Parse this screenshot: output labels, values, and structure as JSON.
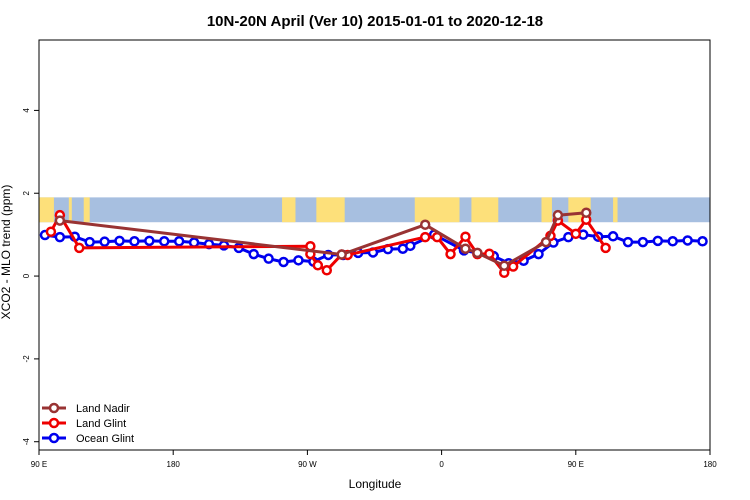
{
  "chart_data": {
    "type": "line",
    "title": "10N-20N April (Ver 10)   2015-01-01 to 2020-12-18",
    "xlabel": "Longitude",
    "ylabel": "XCO2 - MLO trend (ppm)",
    "x_scale": "longitude, wrapping 90E eastward through 180 to 180 (one and a quarter turns)",
    "xlim_longitude_unwrapped": [
      90,
      540
    ],
    "ylim": [
      -4.2,
      5.7
    ],
    "grid": false,
    "legend_position": "bottom-left",
    "x_ticks": [
      {
        "value": 90,
        "label": "90 E"
      },
      {
        "value": 180,
        "label": "180"
      },
      {
        "value": 270,
        "label": "90 W"
      },
      {
        "value": 360,
        "label": "0"
      },
      {
        "value": 450,
        "label": "90 E"
      },
      {
        "value": 540,
        "label": "180"
      }
    ],
    "y_ticks": [
      {
        "value": -4,
        "label": "-4"
      },
      {
        "value": -2,
        "label": "-2"
      },
      {
        "value": 0,
        "label": "0"
      },
      {
        "value": 2,
        "label": "2"
      },
      {
        "value": 4,
        "label": "4"
      }
    ],
    "series": [
      {
        "name": "Ocean Glint",
        "color": "#0000ee",
        "points": [
          [
            94,
            0.99
          ],
          [
            104,
            0.94
          ],
          [
            114,
            0.95
          ],
          [
            124,
            0.82
          ],
          [
            134,
            0.83
          ],
          [
            144,
            0.85
          ],
          [
            154,
            0.84
          ],
          [
            164,
            0.85
          ],
          [
            174,
            0.84
          ],
          [
            184,
            0.84
          ],
          [
            194,
            0.81
          ],
          [
            204,
            0.77
          ],
          [
            214,
            0.74
          ],
          [
            224,
            0.68
          ],
          [
            234,
            0.53
          ],
          [
            244,
            0.42
          ],
          [
            254,
            0.34
          ],
          [
            264,
            0.38
          ],
          [
            274,
            0.35
          ],
          [
            284,
            0.51
          ],
          [
            294,
            0.51
          ],
          [
            304,
            0.56
          ],
          [
            314,
            0.57
          ],
          [
            324,
            0.65
          ],
          [
            334,
            0.66
          ],
          [
            339,
            0.73
          ],
          [
            355,
            1.0
          ],
          [
            375,
            0.62
          ],
          [
            395,
            0.48
          ],
          [
            405,
            0.31
          ],
          [
            415,
            0.37
          ],
          [
            425,
            0.53
          ],
          [
            435,
            0.81
          ],
          [
            445,
            0.94
          ],
          [
            455,
            1.0
          ],
          [
            465,
            0.95
          ],
          [
            475,
            0.96
          ],
          [
            485,
            0.82
          ],
          [
            495,
            0.82
          ],
          [
            505,
            0.85
          ],
          [
            515,
            0.84
          ],
          [
            525,
            0.86
          ],
          [
            535,
            0.84
          ]
        ]
      },
      {
        "name": "Land Glint",
        "color": "#ee0000",
        "points": [
          [
            98,
            1.07
          ],
          [
            104,
            1.47
          ],
          [
            117,
            0.68
          ],
          [
            272,
            0.72
          ],
          [
            272,
            0.53
          ],
          [
            277,
            0.26
          ],
          [
            283,
            0.14
          ],
          [
            293,
            0.52
          ],
          [
            297,
            0.51
          ],
          [
            349,
            0.94
          ],
          [
            357,
            0.94
          ],
          [
            366,
            0.53
          ],
          [
            376,
            0.95
          ],
          [
            384,
            0.53
          ],
          [
            392,
            0.54
          ],
          [
            402,
            0.08
          ],
          [
            408,
            0.23
          ],
          [
            433,
            0.97
          ],
          [
            438,
            1.34
          ],
          [
            450,
            1.02
          ],
          [
            457,
            1.36
          ],
          [
            470,
            0.68
          ]
        ]
      },
      {
        "name": "Land Nadir",
        "color": "#993333",
        "points": [
          [
            104,
            1.34
          ],
          [
            293,
            0.52
          ],
          [
            349,
            1.24
          ],
          [
            376,
            0.66
          ],
          [
            384,
            0.56
          ],
          [
            402,
            0.25
          ],
          [
            430,
            0.82
          ],
          [
            438,
            1.47
          ],
          [
            457,
            1.53
          ]
        ]
      }
    ]
  },
  "legend": {
    "items": [
      {
        "label": "Land Nadir",
        "color": "#993333"
      },
      {
        "label": "Land Glint",
        "color": "#ee0000"
      },
      {
        "label": "Ocean Glint",
        "color": "#0000ee"
      }
    ]
  },
  "map_strip": {
    "y_range": [
      1.3,
      1.9
    ],
    "ocean_color": "#a7bfe0",
    "land_color": "#fde07a",
    "land_longitude_ranges": [
      [
        90,
        100
      ],
      [
        110,
        112
      ],
      [
        120,
        124
      ],
      [
        253,
        262
      ],
      [
        276,
        295
      ],
      [
        342,
        372
      ],
      [
        380,
        398
      ],
      [
        427,
        434
      ],
      [
        445,
        460
      ],
      [
        475,
        478
      ]
    ]
  }
}
